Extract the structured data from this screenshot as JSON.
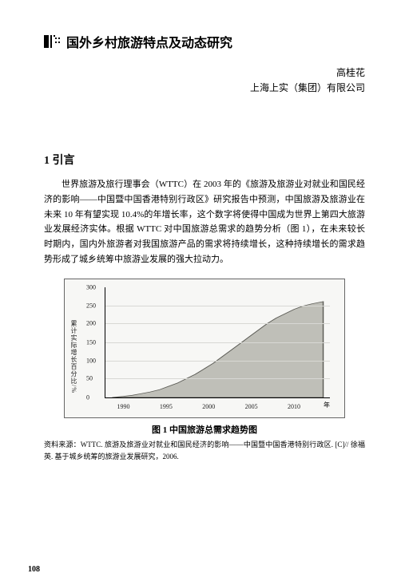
{
  "title": "国外乡村旅游特点及动态研究",
  "author": "高桂花",
  "affiliation": "上海上实（集团）有限公司",
  "section_heading": "1 引言",
  "body_paragraph": "世界旅游及旅行理事会（WTTC）在 2003 年的《旅游及旅游业对就业和国民经济的影响——中国暨中国香港特别行政区》研究报告中预测，中国旅游及旅游业在未来 10 年有望实现 10.4%的年增长率，这个数字将使得中国成为世界上第四大旅游业发展经济实体。根据 WTTC 对中国旅游总需求的趋势分析（图 1），在未来较长时期内，国内外旅游者对我国旅游产品的需求将持续增长，这种持续增长的需求趋势形成了城乡统筹中旅游业发展的强大拉动力。",
  "figure": {
    "type": "area",
    "caption": "图 1  中国旅游总需求趋势图",
    "ylabel": "累计实际增长百分比/%",
    "x_unit": "年",
    "x_ticks": [
      "1990",
      "1995",
      "2000",
      "2005",
      "2010"
    ],
    "x_positions_pct": [
      8,
      27,
      46,
      65,
      84
    ],
    "y_ticks": [
      "0",
      "50",
      "100",
      "150",
      "200",
      "250",
      "300"
    ],
    "y_positions_pct": [
      100,
      83.3,
      66.7,
      50,
      33.3,
      16.7,
      0
    ],
    "ylim": [
      0,
      300
    ],
    "series_points": [
      [
        3,
        100
      ],
      [
        8,
        99
      ],
      [
        12,
        98
      ],
      [
        16,
        96.5
      ],
      [
        20,
        95
      ],
      [
        24,
        93
      ],
      [
        28,
        90
      ],
      [
        32,
        87
      ],
      [
        36,
        83
      ],
      [
        40,
        79
      ],
      [
        44,
        74
      ],
      [
        48,
        69
      ],
      [
        52,
        63
      ],
      [
        56,
        57
      ],
      [
        60,
        51
      ],
      [
        64,
        45
      ],
      [
        68,
        39
      ],
      [
        72,
        33
      ],
      [
        76,
        28
      ],
      [
        80,
        24
      ],
      [
        84,
        20
      ],
      [
        88,
        17
      ],
      [
        92,
        15
      ],
      [
        97,
        13
      ]
    ],
    "area_fill": "#bfbfb8",
    "area_stroke": "#5a5a54",
    "grid_color": "#d8d8d4",
    "background_color": "#f7f7f5",
    "axis_color": "#000000",
    "tick_fontsize": 8,
    "ylabel_fontsize": 8
  },
  "source_text": "资料来源：WTTC. 旅游及旅游业对就业和国民经济的影响——中国暨中国香港特别行政区. [C]// 徐福英. 基于城乡统筹的旅游业发展研究，2006.",
  "page_number": "108"
}
